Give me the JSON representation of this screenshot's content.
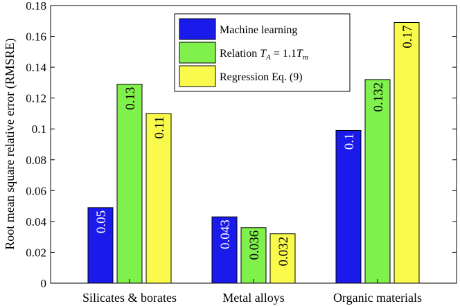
{
  "chart_data": {
    "type": "bar",
    "title": "",
    "xlabel": "",
    "ylabel": "Root mean square relative error (RMSRE)",
    "ylim": [
      0,
      0.18
    ],
    "yticks": [
      0,
      0.02,
      0.04,
      0.06,
      0.08,
      0.1,
      0.12,
      0.14,
      0.16,
      0.18
    ],
    "ytick_labels": [
      "0",
      "0.02",
      "0.04",
      "0.06",
      "0.08",
      "0.1",
      "0.12",
      "0.14",
      "0.16",
      "0.18"
    ],
    "categories": [
      "Silicates & borates",
      "Metal alloys",
      "Organic materials"
    ],
    "grid": false,
    "legend_position": "top-center",
    "series": [
      {
        "name": "Machine learning",
        "color": "#1a1aeb",
        "label_color": "#ffffff",
        "values": [
          0.049,
          0.043,
          0.099
        ],
        "labels": [
          "0.05",
          "0.043",
          "0.1"
        ]
      },
      {
        "name": "Relation T_A = 1.1T_m",
        "color": "#80f04d",
        "label_color": "#000000",
        "values": [
          0.129,
          0.036,
          0.132
        ],
        "labels": [
          "0.13",
          "0.036",
          "0.132"
        ]
      },
      {
        "name": "Regression Eq. (9)",
        "color": "#fafa4d",
        "label_color": "#000000",
        "values": [
          0.11,
          0.032,
          0.169
        ],
        "labels": [
          "0.11",
          "0.032",
          "0.17"
        ]
      }
    ]
  }
}
